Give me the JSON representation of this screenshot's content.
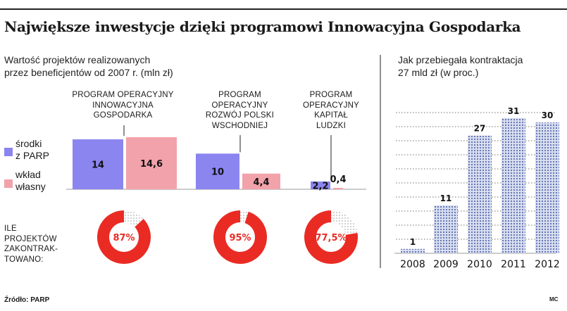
{
  "title": "Największe inwestycje dzięki programowi Innowacyjna Gospodarka",
  "left_subtitle": [
    "Wartość projektów realizowanych",
    "przez beneficjentów od 2007 r. (mln zł)"
  ],
  "right_subtitle": [
    "Jak przebiegała kontraktacja",
    "27 mld zł (w proc.)"
  ],
  "programs": [
    [
      "PROGRAM OPERACYJNY",
      "INNOWACYJNA",
      "GOSPODARKA"
    ],
    [
      "PROGRAM",
      "OPERACYJNY",
      "ROZWÓJ POLSKI",
      "WSCHODNIEJ"
    ],
    [
      "PROGRAM",
      "OPERACYJNY",
      "KAPITAŁ",
      "LUDZKI"
    ]
  ],
  "legend": {
    "parp": [
      "środki",
      "z PARP"
    ],
    "own": [
      "wkład",
      "własny"
    ]
  },
  "ile_label": [
    "ILE",
    "PROJEKTÓW",
    "ZAKONTRAK-",
    "TOWANO:"
  ],
  "source": "Źródło: PARP",
  "author": "MC",
  "colors": {
    "parp": "#8b85f0",
    "own": "#f2a2aa",
    "donut": "#ea2b24",
    "dots": "#5a6fb0"
  },
  "chart_data": [
    {
      "type": "bar",
      "title": "Wartość projektów realizowanych przez beneficjentów od 2007 r. (mln zł)",
      "categories": [
        "PROGRAM OPERACYJNY INNOWACYJNA GOSPODARKA",
        "PROGRAM OPERACYJNY ROZWÓJ POLSKI WSCHODNIEJ",
        "PROGRAM OPERACYJNY KAPITAŁ LUDZKI"
      ],
      "series": [
        {
          "name": "środki z PARP",
          "values": [
            14,
            10,
            2.2
          ],
          "labels": [
            "14",
            "10",
            "2,2"
          ]
        },
        {
          "name": "wkład własny",
          "values": [
            14.6,
            4.4,
            0.4
          ],
          "labels": [
            "14,6",
            "4,4",
            "0,4"
          ]
        }
      ],
      "ylim": [
        0,
        15
      ]
    },
    {
      "type": "pie",
      "title": "ILE PROJEKTÓW ZAKONTRAKTOWANO:",
      "values": [
        87,
        95,
        77.5
      ],
      "labels": [
        "87%",
        "95%",
        "77,5%"
      ]
    },
    {
      "type": "bar",
      "title": "Jak przebiegała kontraktacja 27 mld zł (w proc.)",
      "categories": [
        "2008",
        "2009",
        "2010",
        "2011",
        "2012"
      ],
      "values": [
        1,
        11,
        27,
        31,
        30
      ],
      "labels": [
        "1",
        "11",
        "27",
        "31",
        "30"
      ],
      "ylim": [
        0,
        33
      ]
    }
  ]
}
